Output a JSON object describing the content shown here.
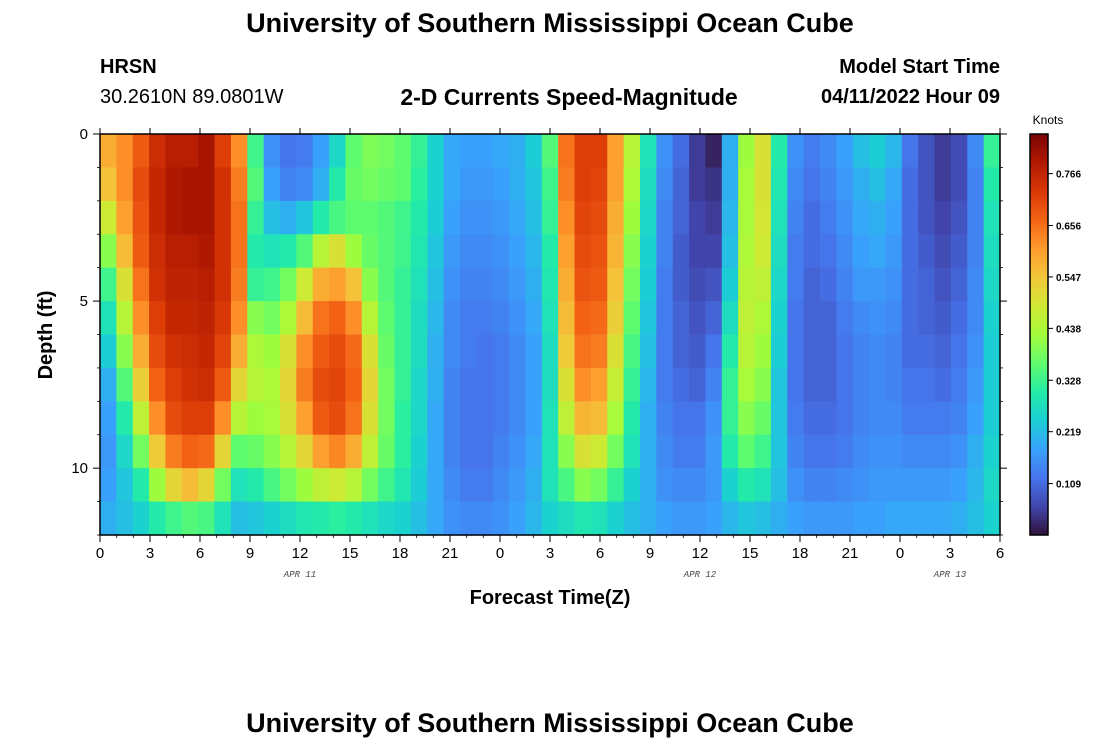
{
  "header": {
    "title": "University of Southern Mississippi Ocean Cube",
    "station": "HRSN",
    "coords": "30.2610N  89.0801W",
    "plot_title": "2-D Currents Speed-Magnitude",
    "model_label": "Model Start Time",
    "model_time": "04/11/2022 Hour 09"
  },
  "footer": {
    "title": "University of Southern Mississippi Ocean Cube"
  },
  "colors": {
    "colormap": [
      "#30123b",
      "#4145ab",
      "#4675ed",
      "#39a2fc",
      "#1bcfd4",
      "#24eca6",
      "#61fc6c",
      "#a4fc3b",
      "#d1e834",
      "#f3c63a",
      "#fe9b2d",
      "#f36315",
      "#d93806",
      "#b11901",
      "#7a0403"
    ],
    "axis": "#000000"
  },
  "chart_data": {
    "type": "heatmap",
    "xlabel": "Forecast Time(Z)",
    "ylabel": "Depth (ft)",
    "colorbar_label": "Knots",
    "x_ticks": [
      "0",
      "3",
      "6",
      "9",
      "12",
      "15",
      "18",
      "21",
      "0",
      "3",
      "6",
      "9",
      "12",
      "15",
      "18",
      "21",
      "0",
      "3",
      "6"
    ],
    "x_range_hours": [
      0,
      54
    ],
    "day_labels": [
      {
        "label": "APR 11",
        "hour": 12
      },
      {
        "label": "APR 12",
        "hour": 36
      },
      {
        "label": "APR 13",
        "hour": 51
      }
    ],
    "y_ticks": [
      "0",
      "5",
      "10"
    ],
    "y_range_ft": [
      0,
      12
    ],
    "colorbar_ticks": [
      "0.766",
      "0.656",
      "0.547",
      "0.438",
      "0.328",
      "0.219",
      "0.109"
    ],
    "colorbar_range": [
      0,
      0.85
    ],
    "hours": [
      0,
      1,
      2,
      3,
      4,
      5,
      6,
      7,
      8,
      9,
      10,
      11,
      12,
      13,
      14,
      15,
      16,
      17,
      18,
      19,
      20,
      21,
      22,
      23,
      24,
      25,
      26,
      27,
      28,
      29,
      30,
      31,
      32,
      33,
      34,
      35,
      36,
      37,
      38,
      39,
      40,
      41,
      42,
      43,
      44,
      45,
      46,
      47,
      48,
      49,
      50,
      51,
      52,
      53,
      54
    ],
    "depths_ft": [
      0,
      1,
      2,
      3,
      4,
      5,
      6,
      7,
      8,
      9,
      10,
      11
    ],
    "speed_knots": [
      [
        0.58,
        0.62,
        0.68,
        0.75,
        0.78,
        0.78,
        0.8,
        0.72,
        0.62,
        0.33,
        0.16,
        0.12,
        0.13,
        0.18,
        0.26,
        0.36,
        0.39,
        0.38,
        0.36,
        0.32,
        0.25,
        0.19,
        0.18,
        0.18,
        0.19,
        0.2,
        0.24,
        0.35,
        0.65,
        0.72,
        0.72,
        0.6,
        0.45,
        0.28,
        0.16,
        0.11,
        0.05,
        0.02,
        0.2,
        0.42,
        0.5,
        0.3,
        0.16,
        0.13,
        0.15,
        0.18,
        0.22,
        0.24,
        0.21,
        0.12,
        0.08,
        0.05,
        0.07,
        0.15,
        0.32
      ],
      [
        0.55,
        0.62,
        0.7,
        0.76,
        0.79,
        0.8,
        0.8,
        0.74,
        0.64,
        0.35,
        0.18,
        0.14,
        0.15,
        0.2,
        0.3,
        0.37,
        0.38,
        0.37,
        0.36,
        0.31,
        0.25,
        0.19,
        0.17,
        0.17,
        0.18,
        0.2,
        0.23,
        0.33,
        0.64,
        0.72,
        0.71,
        0.6,
        0.44,
        0.27,
        0.15,
        0.1,
        0.05,
        0.04,
        0.2,
        0.43,
        0.5,
        0.29,
        0.15,
        0.12,
        0.14,
        0.17,
        0.2,
        0.22,
        0.19,
        0.11,
        0.08,
        0.05,
        0.07,
        0.14,
        0.3
      ],
      [
        0.48,
        0.6,
        0.69,
        0.76,
        0.79,
        0.8,
        0.8,
        0.74,
        0.65,
        0.32,
        0.22,
        0.2,
        0.23,
        0.3,
        0.34,
        0.36,
        0.36,
        0.35,
        0.33,
        0.3,
        0.24,
        0.18,
        0.16,
        0.16,
        0.17,
        0.19,
        0.22,
        0.32,
        0.62,
        0.71,
        0.7,
        0.58,
        0.42,
        0.26,
        0.14,
        0.1,
        0.06,
        0.05,
        0.21,
        0.43,
        0.49,
        0.28,
        0.14,
        0.11,
        0.13,
        0.16,
        0.19,
        0.2,
        0.18,
        0.11,
        0.08,
        0.06,
        0.08,
        0.14,
        0.28
      ],
      [
        0.4,
        0.56,
        0.68,
        0.75,
        0.78,
        0.78,
        0.79,
        0.74,
        0.65,
        0.3,
        0.28,
        0.3,
        0.35,
        0.45,
        0.5,
        0.42,
        0.37,
        0.35,
        0.33,
        0.29,
        0.23,
        0.17,
        0.15,
        0.15,
        0.16,
        0.18,
        0.21,
        0.3,
        0.6,
        0.7,
        0.69,
        0.57,
        0.4,
        0.25,
        0.14,
        0.09,
        0.06,
        0.06,
        0.22,
        0.44,
        0.48,
        0.27,
        0.13,
        0.11,
        0.12,
        0.15,
        0.18,
        0.19,
        0.17,
        0.11,
        0.09,
        0.07,
        0.09,
        0.14,
        0.27
      ],
      [
        0.33,
        0.5,
        0.65,
        0.74,
        0.77,
        0.77,
        0.78,
        0.74,
        0.64,
        0.32,
        0.33,
        0.38,
        0.48,
        0.58,
        0.6,
        0.55,
        0.4,
        0.35,
        0.32,
        0.28,
        0.22,
        0.16,
        0.14,
        0.14,
        0.15,
        0.17,
        0.2,
        0.29,
        0.58,
        0.69,
        0.68,
        0.55,
        0.38,
        0.24,
        0.13,
        0.09,
        0.07,
        0.08,
        0.24,
        0.45,
        0.46,
        0.26,
        0.13,
        0.1,
        0.11,
        0.14,
        0.17,
        0.17,
        0.16,
        0.11,
        0.1,
        0.08,
        0.1,
        0.15,
        0.26
      ],
      [
        0.28,
        0.45,
        0.62,
        0.72,
        0.76,
        0.76,
        0.77,
        0.73,
        0.62,
        0.4,
        0.38,
        0.44,
        0.56,
        0.65,
        0.67,
        0.62,
        0.45,
        0.36,
        0.32,
        0.27,
        0.21,
        0.15,
        0.13,
        0.13,
        0.14,
        0.16,
        0.19,
        0.28,
        0.56,
        0.67,
        0.66,
        0.53,
        0.36,
        0.23,
        0.13,
        0.1,
        0.08,
        0.1,
        0.27,
        0.46,
        0.44,
        0.25,
        0.12,
        0.1,
        0.1,
        0.13,
        0.15,
        0.16,
        0.15,
        0.11,
        0.1,
        0.09,
        0.11,
        0.15,
        0.25
      ],
      [
        0.24,
        0.4,
        0.58,
        0.7,
        0.74,
        0.75,
        0.76,
        0.71,
        0.58,
        0.44,
        0.42,
        0.5,
        0.62,
        0.68,
        0.7,
        0.66,
        0.5,
        0.37,
        0.32,
        0.27,
        0.2,
        0.15,
        0.13,
        0.12,
        0.13,
        0.15,
        0.18,
        0.27,
        0.54,
        0.65,
        0.64,
        0.5,
        0.34,
        0.22,
        0.13,
        0.1,
        0.09,
        0.12,
        0.3,
        0.45,
        0.42,
        0.24,
        0.12,
        0.1,
        0.1,
        0.12,
        0.14,
        0.15,
        0.14,
        0.11,
        0.11,
        0.1,
        0.12,
        0.16,
        0.24
      ],
      [
        0.2,
        0.35,
        0.53,
        0.67,
        0.72,
        0.74,
        0.75,
        0.68,
        0.52,
        0.45,
        0.44,
        0.52,
        0.64,
        0.7,
        0.71,
        0.67,
        0.52,
        0.38,
        0.32,
        0.26,
        0.2,
        0.14,
        0.12,
        0.12,
        0.13,
        0.15,
        0.18,
        0.27,
        0.5,
        0.62,
        0.6,
        0.47,
        0.32,
        0.21,
        0.13,
        0.11,
        0.1,
        0.14,
        0.32,
        0.43,
        0.4,
        0.23,
        0.12,
        0.1,
        0.1,
        0.12,
        0.14,
        0.15,
        0.14,
        0.12,
        0.12,
        0.11,
        0.13,
        0.17,
        0.24
      ],
      [
        0.18,
        0.3,
        0.46,
        0.62,
        0.7,
        0.72,
        0.72,
        0.62,
        0.45,
        0.42,
        0.43,
        0.5,
        0.6,
        0.68,
        0.7,
        0.65,
        0.5,
        0.38,
        0.31,
        0.26,
        0.19,
        0.14,
        0.12,
        0.12,
        0.13,
        0.15,
        0.18,
        0.28,
        0.46,
        0.57,
        0.56,
        0.43,
        0.3,
        0.2,
        0.14,
        0.12,
        0.12,
        0.16,
        0.32,
        0.4,
        0.37,
        0.23,
        0.13,
        0.11,
        0.11,
        0.12,
        0.14,
        0.15,
        0.15,
        0.13,
        0.13,
        0.13,
        0.14,
        0.18,
        0.24
      ],
      [
        0.17,
        0.26,
        0.38,
        0.54,
        0.64,
        0.67,
        0.66,
        0.52,
        0.36,
        0.37,
        0.4,
        0.45,
        0.52,
        0.6,
        0.63,
        0.58,
        0.46,
        0.37,
        0.31,
        0.25,
        0.19,
        0.14,
        0.12,
        0.12,
        0.14,
        0.16,
        0.19,
        0.28,
        0.4,
        0.5,
        0.48,
        0.38,
        0.28,
        0.2,
        0.15,
        0.13,
        0.13,
        0.17,
        0.3,
        0.36,
        0.33,
        0.23,
        0.14,
        0.12,
        0.12,
        0.13,
        0.15,
        0.16,
        0.16,
        0.15,
        0.15,
        0.15,
        0.16,
        0.2,
        0.25
      ],
      [
        0.18,
        0.23,
        0.3,
        0.42,
        0.52,
        0.56,
        0.52,
        0.38,
        0.28,
        0.3,
        0.34,
        0.38,
        0.42,
        0.46,
        0.48,
        0.45,
        0.38,
        0.33,
        0.29,
        0.24,
        0.19,
        0.15,
        0.13,
        0.13,
        0.15,
        0.17,
        0.2,
        0.28,
        0.34,
        0.4,
        0.38,
        0.32,
        0.25,
        0.2,
        0.16,
        0.15,
        0.15,
        0.17,
        0.25,
        0.3,
        0.28,
        0.22,
        0.16,
        0.14,
        0.14,
        0.15,
        0.16,
        0.17,
        0.17,
        0.17,
        0.17,
        0.17,
        0.18,
        0.21,
        0.26
      ],
      [
        0.2,
        0.22,
        0.25,
        0.3,
        0.33,
        0.35,
        0.34,
        0.28,
        0.22,
        0.23,
        0.25,
        0.27,
        0.29,
        0.3,
        0.31,
        0.3,
        0.28,
        0.26,
        0.25,
        0.22,
        0.19,
        0.16,
        0.15,
        0.15,
        0.16,
        0.18,
        0.21,
        0.25,
        0.27,
        0.29,
        0.28,
        0.25,
        0.22,
        0.2,
        0.18,
        0.17,
        0.17,
        0.18,
        0.21,
        0.23,
        0.22,
        0.2,
        0.18,
        0.17,
        0.17,
        0.17,
        0.18,
        0.18,
        0.19,
        0.19,
        0.19,
        0.19,
        0.2,
        0.22,
        0.25
      ]
    ]
  }
}
